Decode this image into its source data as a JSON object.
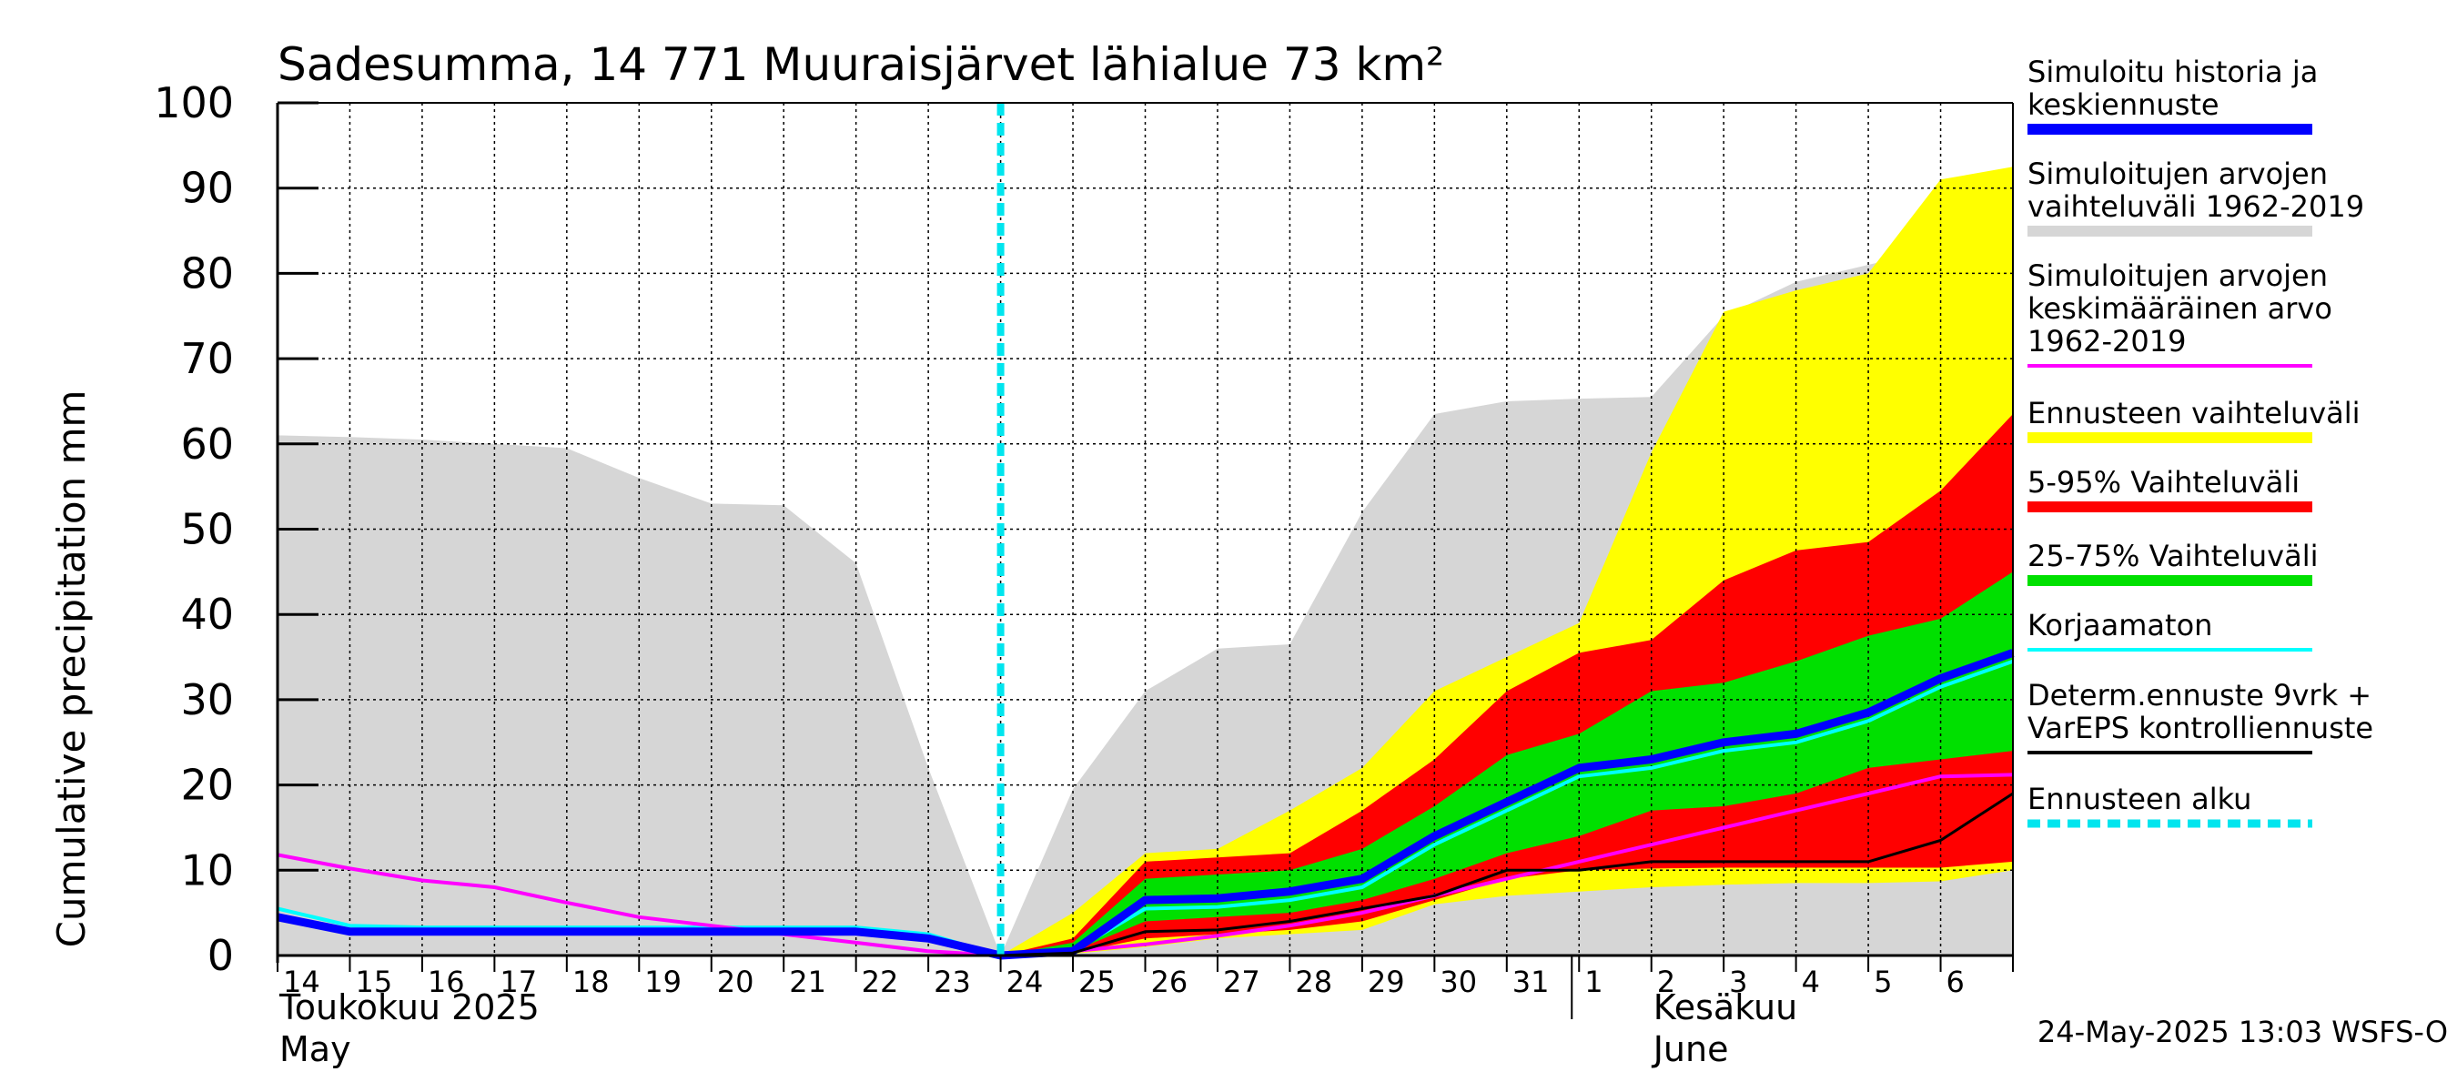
{
  "chart_data": {
    "type": "area",
    "title": "Sadesumma, 14 771 Muuraisjärvet lähialue 73 km²",
    "ylabel": "Cumulative precipitation   mm",
    "ylim": [
      0,
      100
    ],
    "yticks": [
      0,
      10,
      20,
      30,
      40,
      50,
      60,
      70,
      80,
      90,
      100
    ],
    "grid": true,
    "legend_position": "right",
    "x_tick_labels": [
      "14",
      "15",
      "16",
      "17",
      "18",
      "19",
      "20",
      "21",
      "22",
      "23",
      "24",
      "25",
      "26",
      "27",
      "28",
      "29",
      "30",
      "31",
      "1",
      "2",
      "3",
      "4",
      "5",
      "6"
    ],
    "month_labels": [
      {
        "line1": "Toukokuu  2025",
        "line2": "May"
      },
      {
        "line1": "Kesäkuu",
        "line2": "June"
      }
    ],
    "forecast_start_day": 10,
    "timestamp": "24-May-2025 13:03 WSFS-O",
    "colors": {
      "history": "#d6d6d6",
      "forecast_range": "#ffff00",
      "p5_95": "#ff0000",
      "p25_75": "#00e000",
      "simulated": "#0000ff",
      "mean": "#ff00ff",
      "uncorrected": "#00ffff",
      "determ": "#000000",
      "forecast_start": "#00e5ee"
    },
    "hist_top": {
      "x": [
        0,
        1,
        2,
        3,
        4,
        5,
        6,
        7,
        8,
        9,
        10,
        11,
        12,
        13,
        14,
        15,
        16,
        17,
        18,
        19,
        20,
        21,
        22,
        23,
        24
      ],
      "y": [
        61,
        60.8,
        60.5,
        60,
        59.5,
        56,
        53,
        52.8,
        46,
        22,
        0,
        19.5,
        31,
        36,
        36.5,
        52,
        63.5,
        65,
        65.3,
        65.5,
        75,
        79,
        81,
        83,
        84.5
      ]
    },
    "hist_bottom": {
      "x": [
        0,
        10,
        24
      ],
      "y": [
        0,
        0,
        0
      ]
    },
    "forecast_range": {
      "x": [
        10,
        11,
        12,
        13,
        14,
        15,
        16,
        17,
        18,
        19,
        20,
        21,
        22,
        23,
        24
      ],
      "upper": [
        0,
        5,
        12,
        12.5,
        17,
        22,
        31,
        35,
        39,
        59,
        75.5,
        78,
        80,
        91,
        92.5
      ],
      "lower": [
        0,
        0.2,
        1,
        2,
        2.5,
        3,
        6,
        7,
        7.5,
        8,
        8.3,
        8.5,
        8.5,
        8.7,
        10
      ]
    },
    "p5_95": {
      "x": [
        10,
        11,
        12,
        13,
        14,
        15,
        16,
        17,
        18,
        19,
        20,
        21,
        22,
        23,
        24
      ],
      "upper": [
        0,
        2,
        11,
        11.5,
        12,
        17,
        23,
        31,
        35.5,
        37,
        44,
        47.5,
        48.5,
        54.5,
        63.5
      ],
      "lower": [
        0,
        0.3,
        2,
        2.5,
        3,
        4,
        6.5,
        9,
        10,
        10.2,
        10.3,
        10.3,
        10.3,
        10.3,
        11
      ]
    },
    "p25_75": {
      "x": [
        10,
        11,
        12,
        13,
        14,
        15,
        16,
        17,
        18,
        19,
        20,
        21,
        22,
        23,
        24
      ],
      "upper": [
        0,
        1.5,
        9,
        9.5,
        10,
        12.5,
        17.5,
        23.5,
        26,
        31,
        32,
        34.5,
        37.5,
        39.5,
        45
      ],
      "lower": [
        0,
        0.5,
        4,
        4.5,
        5,
        6.5,
        9,
        12,
        14,
        17,
        17.5,
        19,
        22,
        23,
        24
      ]
    },
    "series": [
      {
        "name": "Simuloitu historia ja keskiennuste",
        "x": [
          0,
          1,
          2,
          3,
          4,
          5,
          6,
          7,
          8,
          9,
          10,
          11,
          12,
          13,
          14,
          15,
          16,
          17,
          18,
          19,
          20,
          21,
          22,
          23,
          24
        ],
        "y": [
          4.5,
          2.8,
          2.8,
          2.8,
          2.8,
          2.8,
          2.8,
          2.8,
          2.8,
          2,
          0,
          0.5,
          6.5,
          6.7,
          7.5,
          9,
          14,
          18,
          22,
          23,
          25,
          26,
          28.5,
          32.5,
          35.5
        ]
      },
      {
        "name": "Simuloitujen arvojen keskimääräinen arvo 1962-2019",
        "x": [
          0,
          1,
          2,
          3,
          4,
          5,
          6,
          7,
          8,
          9,
          10,
          11,
          12,
          13,
          14,
          15,
          16,
          17,
          18,
          19,
          20,
          21,
          22,
          23,
          24
        ],
        "y": [
          11.8,
          10.2,
          8.8,
          8,
          6.2,
          4.5,
          3.5,
          2.5,
          1.5,
          0.5,
          0,
          0.5,
          1.3,
          2.3,
          3.5,
          5,
          7,
          9,
          11,
          13,
          15,
          17,
          19,
          21,
          21.2
        ]
      },
      {
        "name": "Korjaamaton",
        "x": [
          0,
          1,
          2,
          3,
          4,
          5,
          6,
          7,
          8,
          9,
          10,
          11,
          12,
          13,
          14,
          15,
          16,
          17,
          18,
          19,
          20,
          21,
          22,
          23,
          24
        ],
        "y": [
          5.5,
          3.5,
          3.3,
          3.3,
          3.3,
          3.3,
          3.3,
          3.3,
          3.3,
          2.5,
          0,
          0.5,
          5.5,
          5.7,
          6.5,
          8,
          13,
          17,
          21,
          22,
          24,
          25,
          27.5,
          31.5,
          34.5
        ]
      },
      {
        "name": "Determ.ennuste 9vrk + VarEPS kontrolliennuste",
        "x": [
          10,
          11,
          12,
          13,
          14,
          15,
          16,
          17,
          18,
          19,
          20,
          21,
          22,
          23,
          24
        ],
        "y": [
          0,
          0.3,
          2.8,
          3,
          4,
          5.5,
          7,
          10,
          10,
          11,
          11,
          11,
          11,
          13.5,
          19
        ]
      }
    ],
    "legend": [
      {
        "lines": [
          "Simuloitu historia ja",
          "keskiennuste"
        ],
        "color": "#0000ff",
        "style": "line"
      },
      {
        "lines": [
          "Simuloitujen arvojen",
          "vaihteluväli 1962-2019"
        ],
        "color": "#d6d6d6",
        "style": "line"
      },
      {
        "lines": [
          "Simuloitujen arvojen",
          "keskimääräinen arvo",
          "   1962-2019"
        ],
        "color": "#ff00ff",
        "style": "thin"
      },
      {
        "lines": [
          "Ennusteen vaihteluväli"
        ],
        "color": "#ffff00",
        "style": "line"
      },
      {
        "lines": [
          "5-95% Vaihteluväli"
        ],
        "color": "#ff0000",
        "style": "line"
      },
      {
        "lines": [
          "25-75% Vaihteluväli"
        ],
        "color": "#00e000",
        "style": "line"
      },
      {
        "lines": [
          "Korjaamaton"
        ],
        "color": "#00ffff",
        "style": "thin"
      },
      {
        "lines": [
          "Determ.ennuste 9vrk +",
          "VarEPS kontrolliennuste"
        ],
        "color": "#000000",
        "style": "thin"
      },
      {
        "lines": [
          "Ennusteen alku"
        ],
        "color": "#00e5ee",
        "style": "dashed"
      }
    ]
  }
}
